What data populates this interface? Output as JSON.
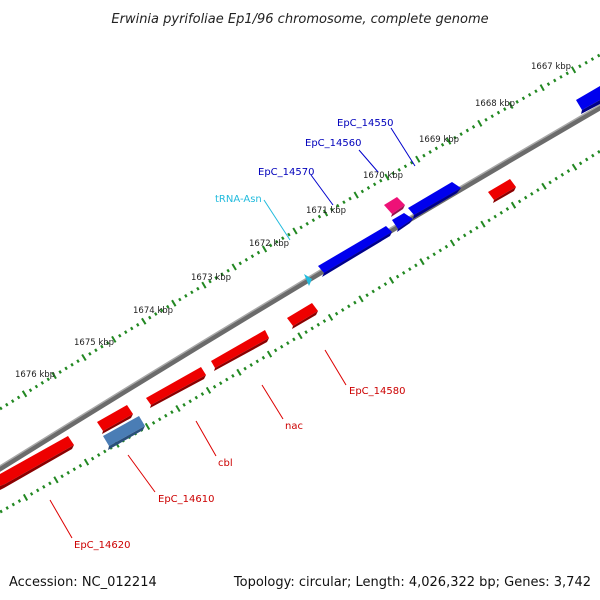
{
  "title": "Erwinia pyrifoliae Ep1/96 chromosome, complete genome",
  "footer": {
    "accession": "Accession: NC_012214",
    "summary": "Topology: circular; Length: 4,026,322 bp; Genes: 3,742"
  },
  "colors": {
    "forward_gene": "#0000ee",
    "reverse_gene": "#ee0000",
    "rrna_gene": "#ee1177",
    "pseudo_gene": "#4477aa",
    "trna": "#22bbdd",
    "backbone": "#808080",
    "ticks": "#228822"
  },
  "kbp_labels": [
    "1667 kbp",
    "1668 kbp",
    "1669 kbp",
    "1670 kbp",
    "1671 kbp",
    "1672 kbp",
    "1673 kbp",
    "1674 kbp",
    "1675 kbp",
    "1676 kbp"
  ],
  "gene_labels": [
    {
      "id": "lab-EpC_14550",
      "text": "EpC_14550",
      "strand": "forward"
    },
    {
      "id": "lab-EpC_14560",
      "text": "EpC_14560",
      "strand": "forward"
    },
    {
      "id": "lab-EpC_14570",
      "text": "EpC_14570",
      "strand": "forward"
    },
    {
      "id": "lab-tRNA-Asn",
      "text": "tRNA-Asn",
      "strand": "trna"
    },
    {
      "id": "lab-EpC_14580",
      "text": "EpC_14580",
      "strand": "reverse"
    },
    {
      "id": "lab-nac",
      "text": "nac",
      "strand": "reverse"
    },
    {
      "id": "lab-cbl",
      "text": "cbl",
      "strand": "reverse"
    },
    {
      "id": "lab-EpC_14610",
      "text": "EpC_14610",
      "strand": "reverse"
    },
    {
      "id": "lab-EpC_14620",
      "text": "EpC_14620",
      "strand": "reverse"
    }
  ]
}
